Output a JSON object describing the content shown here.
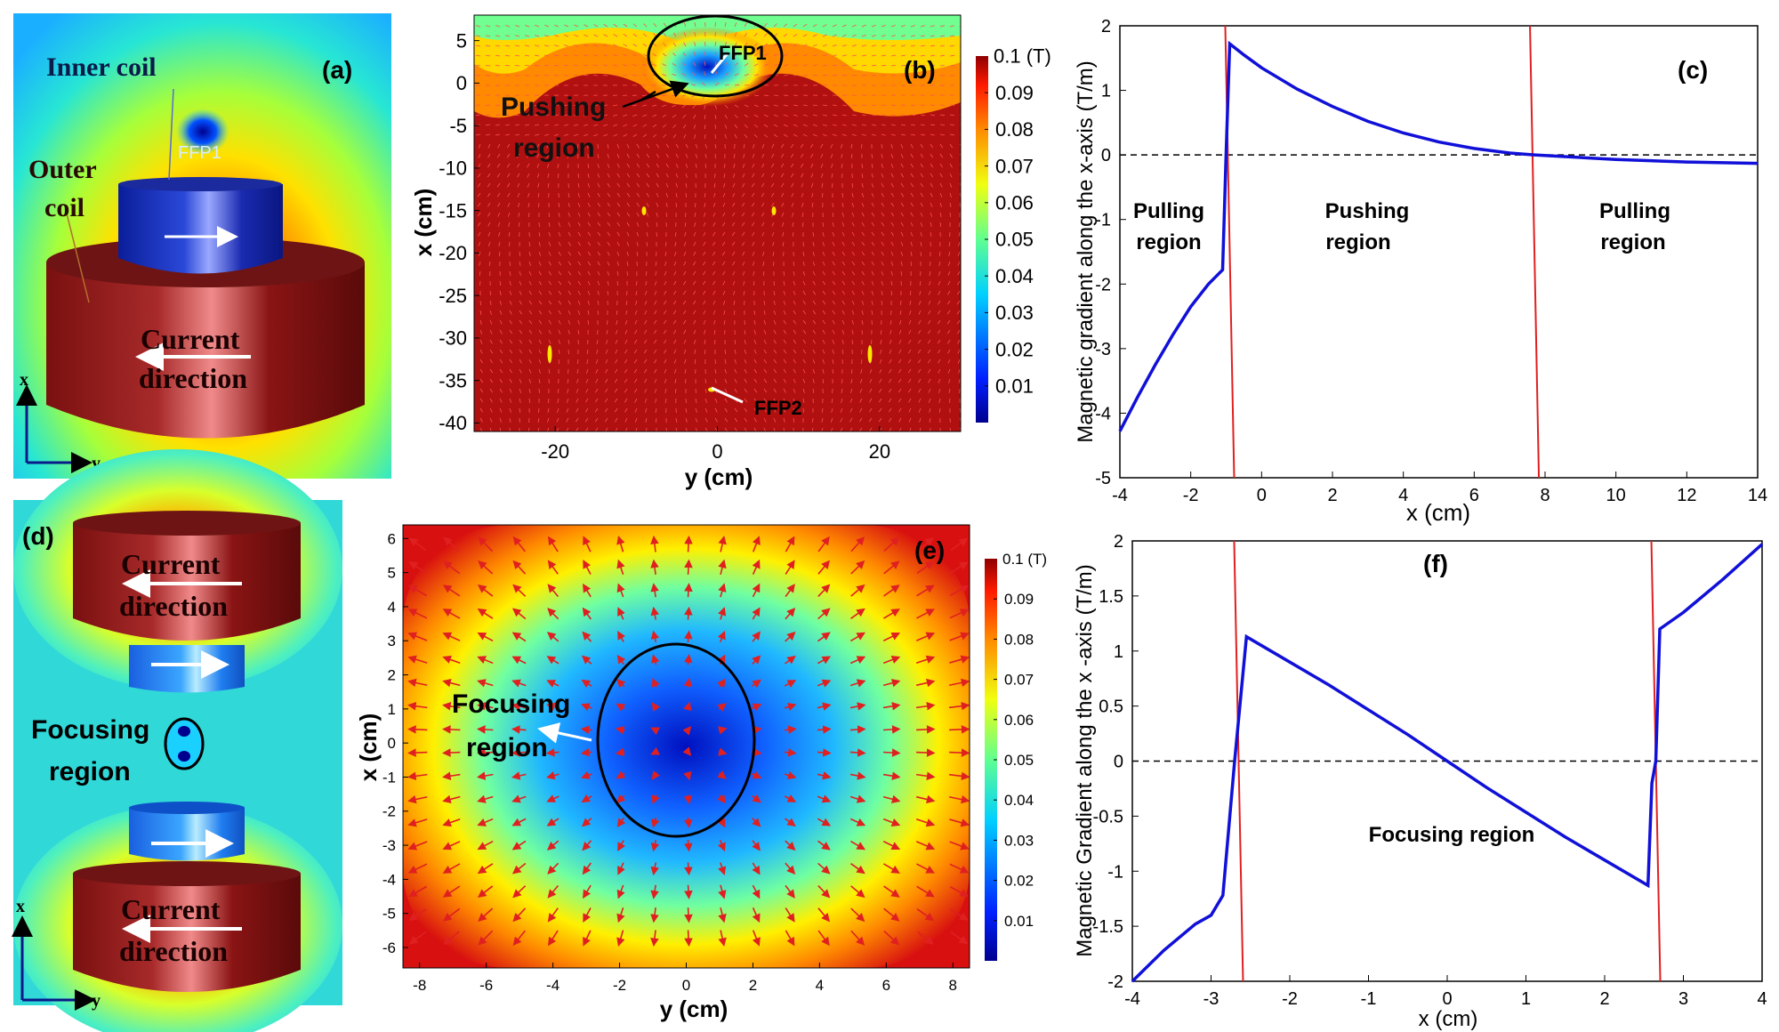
{
  "chart_data": [
    {
      "panel": "(a)",
      "type": "other",
      "description_labels": {
        "inner_coil": "Inner coil",
        "outer_coil_line1": "Outer",
        "outer_coil_line2": "coil",
        "ffp": "FFP1",
        "current_line1": "Current",
        "current_line2": "direction",
        "axis_x": "x",
        "axis_y": "y"
      }
    },
    {
      "panel": "(b)",
      "type": "heatmap",
      "xlabel": "y (cm)",
      "ylabel": "x (cm)",
      "xlim": [
        -30,
        30
      ],
      "ylim": [
        -41,
        8
      ],
      "xticks": [
        -20,
        0,
        20
      ],
      "yticks": [
        5,
        0,
        -5,
        -10,
        -15,
        -20,
        -25,
        -30,
        -35,
        -40
      ],
      "colorbar": {
        "unit": "0.1 (T)",
        "ticks": [
          0.01,
          0.02,
          0.03,
          0.04,
          0.05,
          0.06,
          0.07,
          0.08,
          0.09
        ]
      },
      "annotations": [
        "FFP1",
        "FFP2",
        "Pushing",
        "region"
      ]
    },
    {
      "panel": "(c)",
      "type": "line",
      "xlabel": "x (cm)",
      "ylabel": "Magnetic gradient along the x-axis (T/m)",
      "xlim": [
        -4,
        14
      ],
      "ylim": [
        -5,
        2
      ],
      "xticks": [
        -4,
        -2,
        0,
        2,
        4,
        6,
        8,
        10,
        12,
        14
      ],
      "yticks": [
        2,
        1,
        0,
        -1,
        -2,
        -3,
        -4,
        -5
      ],
      "x": [
        -4,
        -3.5,
        -3,
        -2.5,
        -2,
        -1.5,
        -1.1,
        -1.0,
        -0.9,
        -0.5,
        0,
        1,
        2,
        3,
        4,
        5,
        6,
        7,
        7.7,
        9,
        10,
        12,
        14
      ],
      "y": [
        -4.28,
        -3.75,
        -3.25,
        -2.78,
        -2.35,
        -2.0,
        -1.78,
        0.05,
        1.72,
        1.55,
        1.35,
        1.02,
        0.75,
        0.52,
        0.34,
        0.2,
        0.1,
        0.03,
        0.0,
        -0.04,
        -0.07,
        -0.11,
        -0.13
      ],
      "vlines": [
        -0.9,
        7.7
      ],
      "region_labels": [
        [
          "Pulling",
          "region"
        ],
        [
          "Pushing",
          "region"
        ],
        [
          "Pulling",
          "region"
        ]
      ]
    },
    {
      "panel": "(d)",
      "type": "other",
      "description_labels": {
        "current_line1": "Current",
        "current_line2": "direction",
        "focus_line1": "Focusing",
        "focus_line2": "region",
        "axis_x": "x",
        "axis_y": "y"
      }
    },
    {
      "panel": "(e)",
      "type": "heatmap",
      "xlabel": "y (cm)",
      "ylabel": "x (cm)",
      "xlim": [
        -8.5,
        8.5
      ],
      "ylim": [
        -6.6,
        6.4
      ],
      "xticks": [
        -8,
        -6,
        -4,
        -2,
        0,
        2,
        4,
        6,
        8
      ],
      "yticks": [
        6,
        5,
        4,
        3,
        2,
        1,
        0,
        -1,
        -2,
        -3,
        -4,
        -5,
        -6
      ],
      "colorbar": {
        "unit": "0.1 (T)",
        "ticks": [
          0.01,
          0.02,
          0.03,
          0.04,
          0.05,
          0.06,
          0.07,
          0.08,
          0.09
        ]
      },
      "annotations": [
        "Focusing",
        "region"
      ]
    },
    {
      "panel": "(f)",
      "type": "line",
      "xlabel": "x (cm)",
      "ylabel": "Magnetic Gradient along the x -axis (T/m)",
      "xlim": [
        -4,
        4
      ],
      "ylim": [
        -2,
        2
      ],
      "xticks": [
        -4,
        -3,
        -2,
        -1,
        0,
        1,
        2,
        3,
        4
      ],
      "yticks": [
        2,
        1.5,
        1,
        0.5,
        0,
        -0.5,
        -1,
        -1.5,
        -2
      ],
      "x": [
        -4,
        -3.6,
        -3.2,
        -3.0,
        -2.85,
        -2.7,
        -2.55,
        -1.5,
        -0.5,
        0,
        0.5,
        1.5,
        2.55,
        2.6,
        2.65,
        2.7,
        3.0,
        3.5,
        4
      ],
      "y": [
        -2.0,
        -1.72,
        -1.48,
        -1.4,
        -1.22,
        0.0,
        1.13,
        0.69,
        0.24,
        0.0,
        -0.24,
        -0.69,
        -1.13,
        -0.2,
        0.0,
        1.2,
        1.35,
        1.65,
        1.97
      ],
      "vlines": [
        -2.65,
        2.65
      ],
      "annotations": [
        "Focusing region"
      ]
    }
  ]
}
